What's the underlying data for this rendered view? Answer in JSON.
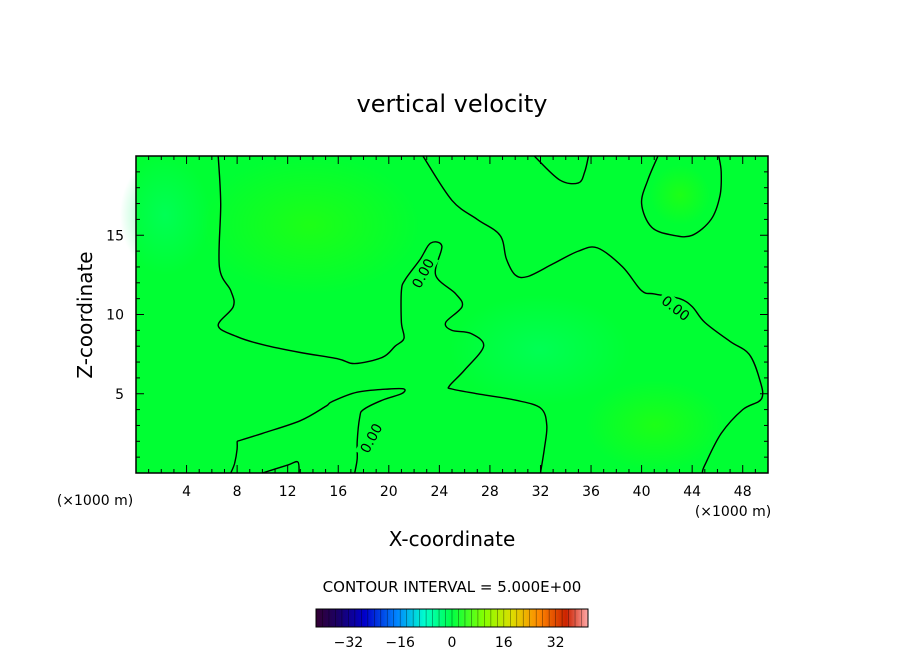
{
  "chart_data": {
    "type": "heatmap",
    "title": "vertical velocity",
    "xlabel": "X-coordinate",
    "ylabel": "Z-coordinate",
    "x_unit": "(×1000 m)",
    "y_unit": "(×1000 m)",
    "xlim": [
      0,
      50
    ],
    "ylim": [
      0,
      20
    ],
    "x_ticks": [
      4,
      8,
      12,
      16,
      20,
      24,
      28,
      32,
      36,
      40,
      44,
      48
    ],
    "y_ticks": [
      5,
      10,
      15
    ],
    "contour_interval_text": "CONTOUR INTERVAL = 5.000E+00",
    "contour_label": "0.00",
    "colorbar": {
      "range": [
        -42,
        42
      ],
      "tick_values": [
        -32,
        -16,
        0,
        16,
        32
      ],
      "tick_labels": [
        "−32",
        "−16",
        "0",
        "16",
        "32"
      ]
    },
    "field_description_colors": {
      "background": "#00ff33",
      "slight_positive": "#33ff00",
      "slight_negative": "#00ff66"
    },
    "zero_contours": [
      {
        "name": "left-region",
        "points": [
          [
            6.5,
            20
          ],
          [
            6.7,
            17
          ],
          [
            6.6,
            13
          ],
          [
            7.5,
            11.5
          ],
          [
            7.7,
            10.5
          ],
          [
            6.5,
            9.3
          ],
          [
            8,
            8.6
          ],
          [
            10,
            8.1
          ],
          [
            13,
            7.6
          ],
          [
            16,
            7.2
          ],
          [
            17.3,
            6.9
          ],
          [
            19.5,
            7.3
          ],
          [
            20.5,
            8
          ],
          [
            21.2,
            8.5
          ],
          [
            21,
            9.5
          ],
          [
            21,
            11.5
          ],
          [
            21.3,
            12.2
          ],
          [
            22.5,
            13.5
          ],
          [
            23.3,
            14.5
          ],
          [
            24.2,
            14.3
          ],
          [
            23.7,
            12.5
          ],
          [
            25.3,
            11.3
          ],
          [
            25.8,
            10.5
          ],
          [
            24.5,
            9.5
          ],
          [
            25,
            9
          ],
          [
            26.5,
            8.8
          ],
          [
            27.5,
            8
          ],
          [
            26,
            6.5
          ],
          [
            24.8,
            5.5
          ],
          [
            25,
            5.3
          ],
          [
            27,
            5
          ],
          [
            30,
            4.6
          ],
          [
            32,
            4.1
          ],
          [
            32.5,
            3
          ],
          [
            32.3,
            1.5
          ],
          [
            32,
            0
          ]
        ]
      },
      {
        "name": "right-region",
        "points": [
          [
            22.7,
            20
          ],
          [
            25,
            17.2
          ],
          [
            27,
            16
          ],
          [
            28.8,
            15
          ],
          [
            29.3,
            13.5
          ],
          [
            30,
            12.5
          ],
          [
            31,
            12.4
          ],
          [
            33,
            13.2
          ],
          [
            35,
            14
          ],
          [
            36.5,
            14.2
          ],
          [
            38.5,
            13
          ],
          [
            40,
            11.5
          ],
          [
            41,
            11.3
          ],
          [
            43,
            11
          ],
          [
            44,
            10.5
          ],
          [
            45,
            9.5
          ],
          [
            47,
            8.3
          ],
          [
            48.5,
            7.5
          ],
          [
            49.3,
            6
          ],
          [
            49.5,
            4.7
          ],
          [
            48,
            4
          ],
          [
            46.3,
            2.5
          ],
          [
            45,
            0.5
          ],
          [
            44.8,
            0
          ]
        ]
      },
      {
        "name": "top-center-bump",
        "points": [
          [
            31.5,
            20
          ],
          [
            33.5,
            18.5
          ],
          [
            35,
            18.3
          ],
          [
            35.5,
            19
          ],
          [
            35.8,
            20
          ]
        ]
      },
      {
        "name": "top-right-lobe",
        "points": [
          [
            41.3,
            20
          ],
          [
            40.5,
            18.5
          ],
          [
            40,
            17
          ],
          [
            40.8,
            15.5
          ],
          [
            42.5,
            15
          ],
          [
            44,
            15
          ],
          [
            45.5,
            16
          ],
          [
            46.2,
            17.5
          ],
          [
            46.3,
            19
          ],
          [
            46.1,
            20
          ]
        ]
      },
      {
        "name": "lower-left-band",
        "points": [
          [
            8,
            2
          ],
          [
            10,
            2.5
          ],
          [
            13,
            3.3
          ],
          [
            15,
            4.2
          ],
          [
            15.5,
            4.5
          ],
          [
            17.5,
            5.1
          ],
          [
            20,
            5.3
          ],
          [
            21.2,
            5.3
          ],
          [
            21,
            5
          ],
          [
            19.5,
            4.6
          ],
          [
            18,
            4
          ],
          [
            17.7,
            3.5
          ],
          [
            17.5,
            2
          ],
          [
            17.5,
            0.9
          ],
          [
            17.3,
            0
          ]
        ]
      },
      {
        "name": "bottom-left-bump",
        "points": [
          [
            7.5,
            0
          ],
          [
            7.8,
            0.6
          ],
          [
            8,
            1.5
          ],
          [
            8,
            2
          ]
        ]
      },
      {
        "name": "bottom-center-bump",
        "points": [
          [
            10,
            0
          ],
          [
            12,
            0.5
          ],
          [
            12.8,
            0.7
          ],
          [
            12.9,
            0
          ]
        ]
      }
    ]
  }
}
